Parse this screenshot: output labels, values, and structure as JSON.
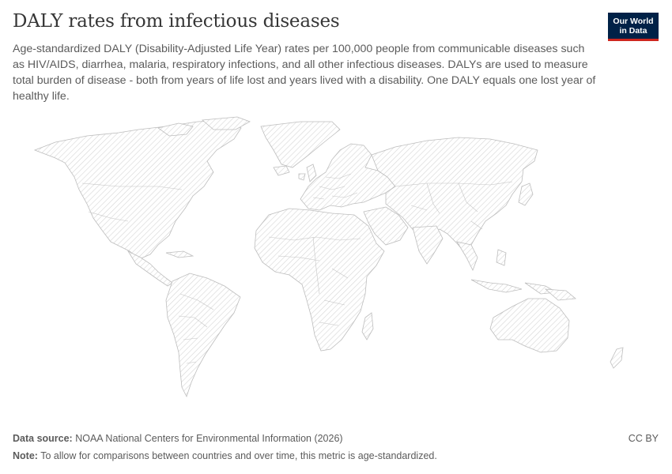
{
  "header": {
    "title": "DALY rates from infectious diseases",
    "subtitle": "Age-standardized DALY (Disability-Adjusted Life Year) rates per 100,000 people from communicable diseases such as HIV/AIDS, diarrhea, malaria, respiratory infections, and all other infectious diseases. DALYs are used to measure total burden of disease - both from years of life lost and years lived with a disability. One DALY equals one lost year of healthy life."
  },
  "logo": {
    "line1": "Our World",
    "line2": "in Data",
    "background": "#002147",
    "accent": "#ce261e"
  },
  "map": {
    "type": "world-choropleth",
    "state": "no-data",
    "fill_pattern": "diagonal-hatch",
    "hatch_color": "#d6d6d6"
  },
  "footer": {
    "source_label": "Data source:",
    "source_value": "NOAA National Centers for Environmental Information (2026)",
    "note_label": "Note:",
    "note_value": "To allow for comparisons between countries and over time, this metric is age-standardized.",
    "license": "CC BY"
  }
}
